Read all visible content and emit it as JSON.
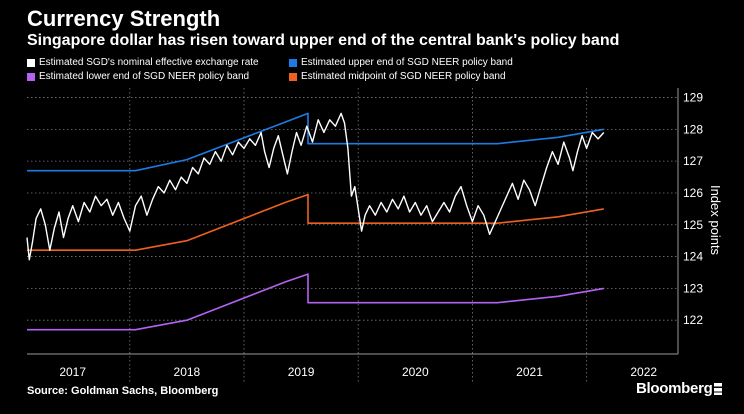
{
  "chart_data": {
    "type": "line",
    "title": "Currency Strength",
    "subtitle": "Singapore dollar has risen toward upper end of the central bank's policy band",
    "ylabel": "Index points",
    "ylim": [
      121,
      129.3
    ],
    "yticks": [
      122,
      123,
      124,
      125,
      126,
      127,
      128,
      129
    ],
    "xlim": [
      2016.6,
      2022.3
    ],
    "xticks": [
      {
        "label": "2017",
        "at": 2017.0,
        "year_start": 2016.5
      },
      {
        "label": "2018",
        "at": 2018.0,
        "year_start": 2017.5
      },
      {
        "label": "2019",
        "at": 2019.0,
        "year_start": 2018.5
      },
      {
        "label": "2020",
        "at": 2020.0,
        "year_start": 2019.5
      },
      {
        "label": "2021",
        "at": 2021.0,
        "year_start": 2020.5
      },
      {
        "label": "2022",
        "at": 2022.0,
        "year_start": 2021.5
      }
    ],
    "x_gridlines": [
      2017.5,
      2018.5,
      2019.5,
      2020.5,
      2021.5
    ],
    "grid": true,
    "legend_position": "top",
    "series": [
      {
        "name": "Estimated SGD's nominal effective exchange rate",
        "color": "#ffffff",
        "points": [
          [
            2016.6,
            124.6
          ],
          [
            2016.62,
            123.9
          ],
          [
            2016.65,
            124.5
          ],
          [
            2016.68,
            125.2
          ],
          [
            2016.72,
            125.5
          ],
          [
            2016.76,
            125.0
          ],
          [
            2016.8,
            124.2
          ],
          [
            2016.84,
            124.9
          ],
          [
            2016.88,
            125.4
          ],
          [
            2016.92,
            124.6
          ],
          [
            2016.96,
            125.2
          ],
          [
            2017.0,
            125.6
          ],
          [
            2017.05,
            125.1
          ],
          [
            2017.1,
            125.7
          ],
          [
            2017.15,
            125.4
          ],
          [
            2017.2,
            125.9
          ],
          [
            2017.25,
            125.6
          ],
          [
            2017.3,
            125.8
          ],
          [
            2017.35,
            125.3
          ],
          [
            2017.4,
            125.7
          ],
          [
            2017.45,
            125.2
          ],
          [
            2017.5,
            124.8
          ],
          [
            2017.55,
            125.6
          ],
          [
            2017.6,
            125.9
          ],
          [
            2017.65,
            125.3
          ],
          [
            2017.7,
            125.8
          ],
          [
            2017.75,
            126.2
          ],
          [
            2017.8,
            126.0
          ],
          [
            2017.85,
            126.4
          ],
          [
            2017.9,
            126.1
          ],
          [
            2017.95,
            126.5
          ],
          [
            2018.0,
            126.3
          ],
          [
            2018.05,
            126.8
          ],
          [
            2018.1,
            126.6
          ],
          [
            2018.15,
            127.1
          ],
          [
            2018.2,
            126.9
          ],
          [
            2018.25,
            127.3
          ],
          [
            2018.3,
            127.0
          ],
          [
            2018.35,
            127.5
          ],
          [
            2018.4,
            127.2
          ],
          [
            2018.45,
            127.6
          ],
          [
            2018.5,
            127.4
          ],
          [
            2018.55,
            127.7
          ],
          [
            2018.6,
            127.5
          ],
          [
            2018.65,
            127.9
          ],
          [
            2018.68,
            127.3
          ],
          [
            2018.72,
            126.8
          ],
          [
            2018.76,
            127.4
          ],
          [
            2018.8,
            127.8
          ],
          [
            2018.84,
            127.2
          ],
          [
            2018.88,
            126.6
          ],
          [
            2018.92,
            127.3
          ],
          [
            2018.96,
            127.9
          ],
          [
            2019.0,
            127.5
          ],
          [
            2019.05,
            128.1
          ],
          [
            2019.1,
            127.6
          ],
          [
            2019.15,
            128.3
          ],
          [
            2019.2,
            127.9
          ],
          [
            2019.25,
            128.3
          ],
          [
            2019.3,
            128.1
          ],
          [
            2019.35,
            128.5
          ],
          [
            2019.38,
            128.2
          ],
          [
            2019.41,
            127.4
          ],
          [
            2019.44,
            125.9
          ],
          [
            2019.47,
            126.2
          ],
          [
            2019.5,
            125.5
          ],
          [
            2019.53,
            124.8
          ],
          [
            2019.56,
            125.3
          ],
          [
            2019.6,
            125.6
          ],
          [
            2019.65,
            125.3
          ],
          [
            2019.7,
            125.7
          ],
          [
            2019.75,
            125.4
          ],
          [
            2019.8,
            125.8
          ],
          [
            2019.85,
            125.5
          ],
          [
            2019.9,
            125.9
          ],
          [
            2019.95,
            125.4
          ],
          [
            2020.0,
            125.7
          ],
          [
            2020.05,
            125.3
          ],
          [
            2020.1,
            125.6
          ],
          [
            2020.15,
            125.1
          ],
          [
            2020.2,
            125.4
          ],
          [
            2020.25,
            125.7
          ],
          [
            2020.3,
            125.4
          ],
          [
            2020.35,
            125.9
          ],
          [
            2020.4,
            126.2
          ],
          [
            2020.45,
            125.6
          ],
          [
            2020.5,
            125.1
          ],
          [
            2020.55,
            125.6
          ],
          [
            2020.6,
            125.3
          ],
          [
            2020.65,
            124.7
          ],
          [
            2020.7,
            125.1
          ],
          [
            2020.75,
            125.5
          ],
          [
            2020.8,
            125.9
          ],
          [
            2020.85,
            126.3
          ],
          [
            2020.9,
            125.8
          ],
          [
            2020.95,
            126.4
          ],
          [
            2021.0,
            126.1
          ],
          [
            2021.05,
            125.6
          ],
          [
            2021.1,
            126.2
          ],
          [
            2021.15,
            126.8
          ],
          [
            2021.2,
            127.3
          ],
          [
            2021.25,
            126.9
          ],
          [
            2021.3,
            127.6
          ],
          [
            2021.35,
            127.1
          ],
          [
            2021.38,
            126.7
          ],
          [
            2021.42,
            127.3
          ],
          [
            2021.46,
            127.8
          ],
          [
            2021.5,
            127.4
          ],
          [
            2021.55,
            127.9
          ],
          [
            2021.6,
            127.7
          ],
          [
            2021.65,
            127.9
          ]
        ]
      },
      {
        "name": "Estimated upper end of SGD NEER policy band",
        "color": "#1e7be6",
        "points": [
          [
            2016.6,
            126.7
          ],
          [
            2017.55,
            126.7
          ],
          [
            2018.0,
            127.05
          ],
          [
            2019.06,
            128.5
          ],
          [
            2019.06,
            127.55
          ],
          [
            2020.72,
            127.55
          ],
          [
            2021.25,
            127.75
          ],
          [
            2021.65,
            128.0
          ]
        ]
      },
      {
        "name": "Estimated lower end of SGD NEER policy band",
        "color": "#b463f0",
        "points": [
          [
            2016.6,
            121.7
          ],
          [
            2017.55,
            121.7
          ],
          [
            2018.0,
            122.0
          ],
          [
            2018.86,
            123.2
          ],
          [
            2019.06,
            123.45
          ],
          [
            2019.06,
            122.55
          ],
          [
            2020.72,
            122.55
          ],
          [
            2021.25,
            122.75
          ],
          [
            2021.65,
            123.0
          ]
        ]
      },
      {
        "name": "Estimated midpoint of SGD NEER policy band",
        "color": "#f06020",
        "points": [
          [
            2016.6,
            124.2
          ],
          [
            2017.55,
            124.2
          ],
          [
            2018.0,
            124.5
          ],
          [
            2018.86,
            125.7
          ],
          [
            2019.06,
            125.95
          ],
          [
            2019.06,
            125.05
          ],
          [
            2020.72,
            125.05
          ],
          [
            2021.25,
            125.25
          ],
          [
            2021.65,
            125.5
          ]
        ]
      }
    ],
    "source": "Source: Goldman Sachs, Bloomberg"
  },
  "brand": "Bloomberg"
}
